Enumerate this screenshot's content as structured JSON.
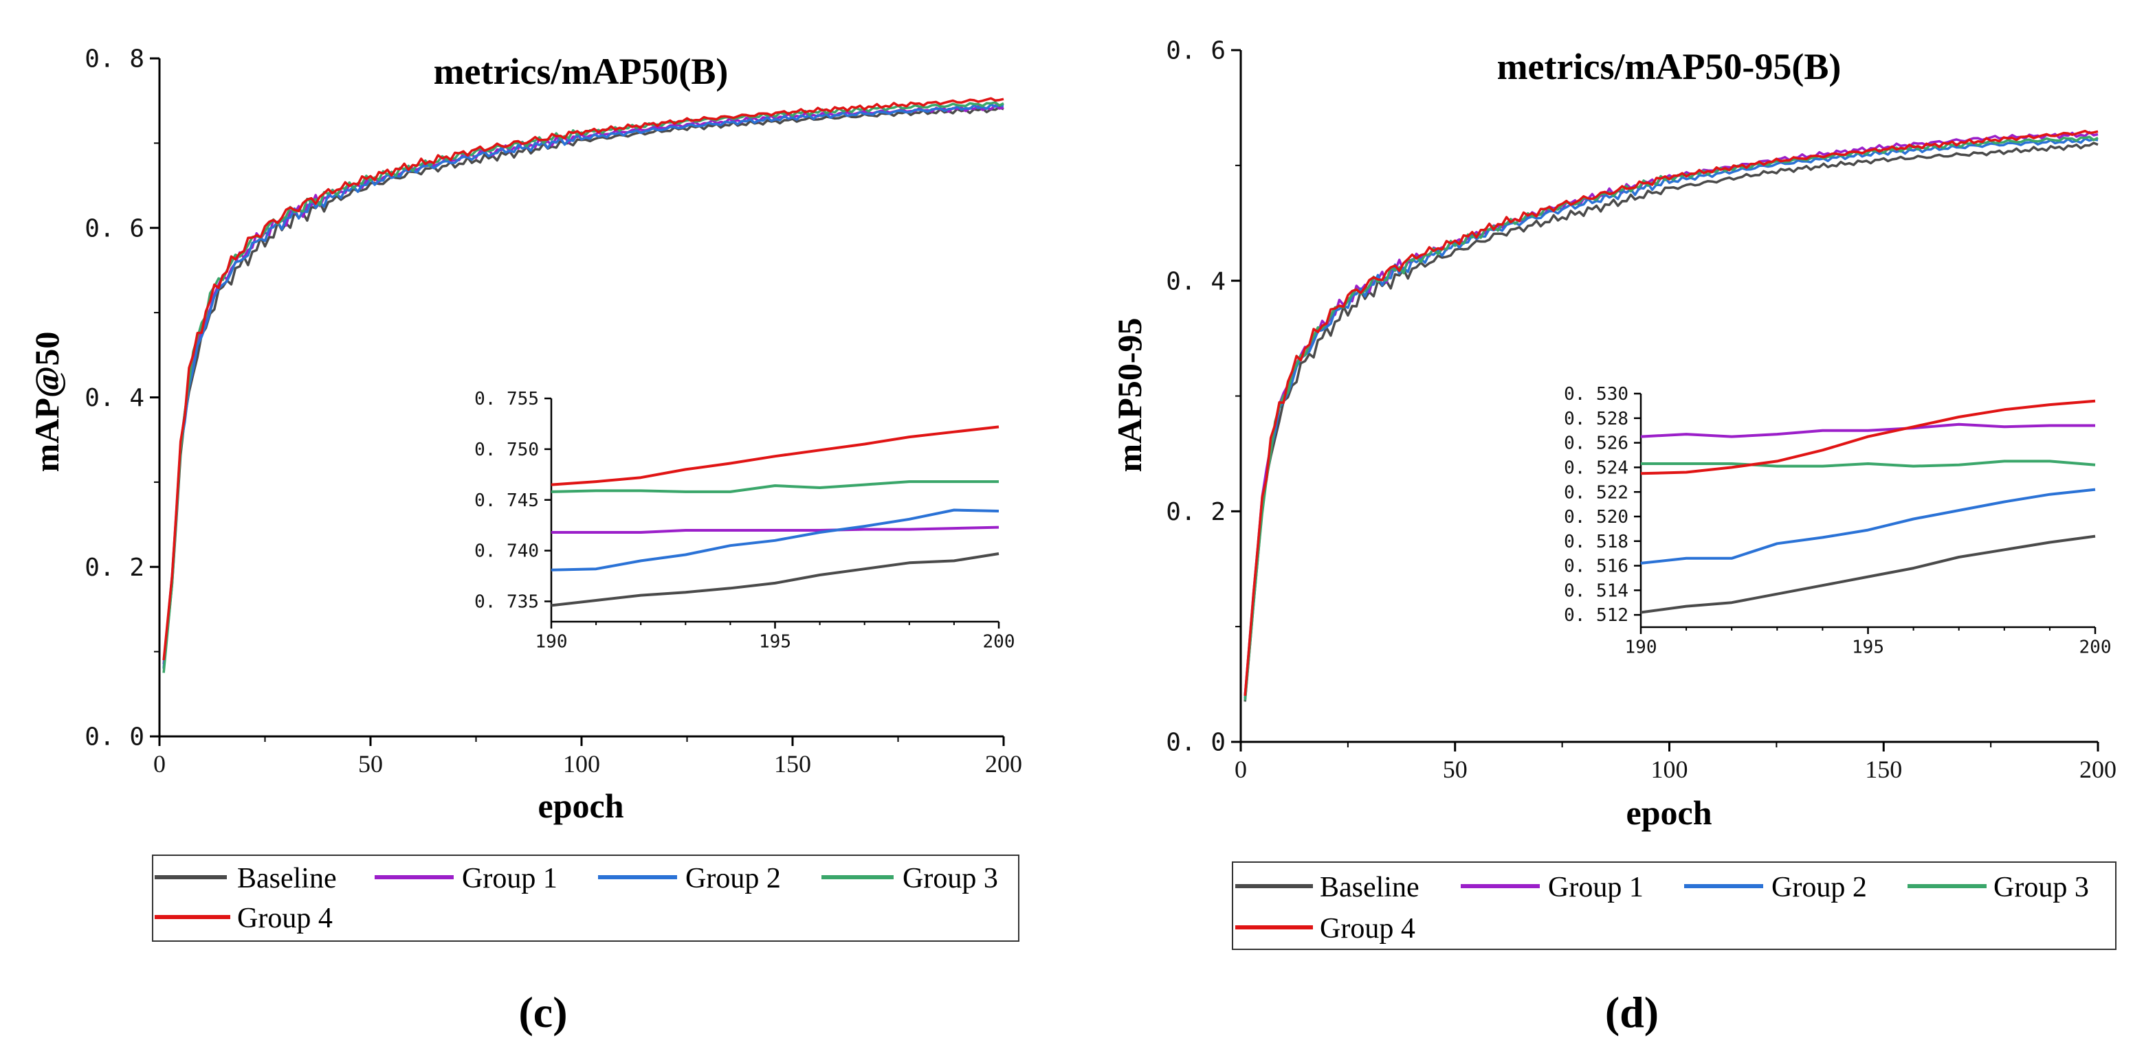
{
  "colors": {
    "Baseline": "#4a4a4a",
    "Group 1": "#9b1fc9",
    "Group 2": "#2a72d6",
    "Group 3": "#3aa66a",
    "Group 4": "#e01414"
  },
  "panels": [
    {
      "caption": "(c)",
      "legend": [
        "Baseline",
        "Group 1",
        "Group 2",
        "Group 3",
        "Group 4"
      ]
    },
    {
      "caption": "(d)",
      "legend": [
        "Baseline",
        "Group 1",
        "Group 2",
        "Group 3",
        "Group 4"
      ]
    }
  ],
  "chart_data": [
    {
      "type": "line",
      "title": "metrics/mAP50(B)",
      "xlabel": "epoch",
      "ylabel": "mAP@50",
      "xlim": [
        0,
        200
      ],
      "ylim": [
        0,
        0.8
      ],
      "xticks": [
        "0",
        "50",
        "100",
        "150",
        "200"
      ],
      "yticks": [
        "0. 0",
        "0. 2",
        "0. 4",
        "0. 6",
        "0. 8"
      ],
      "grid": false,
      "x": [
        1,
        3,
        5,
        7,
        9,
        12,
        15,
        20,
        25,
        30,
        40,
        50,
        60,
        75,
        100,
        125,
        150,
        175,
        200
      ],
      "series": [
        {
          "name": "Baseline",
          "values": [
            0.08,
            0.18,
            0.33,
            0.41,
            0.45,
            0.5,
            0.53,
            0.56,
            0.585,
            0.605,
            0.63,
            0.65,
            0.665,
            0.68,
            0.703,
            0.718,
            0.727,
            0.735,
            0.74
          ]
        },
        {
          "name": "Group 1",
          "values": [
            0.085,
            0.19,
            0.34,
            0.42,
            0.46,
            0.51,
            0.54,
            0.57,
            0.595,
            0.612,
            0.638,
            0.655,
            0.67,
            0.687,
            0.708,
            0.722,
            0.732,
            0.738,
            0.742
          ]
        },
        {
          "name": "Group 2",
          "values": [
            0.08,
            0.185,
            0.335,
            0.415,
            0.455,
            0.505,
            0.535,
            0.567,
            0.592,
            0.61,
            0.635,
            0.653,
            0.668,
            0.685,
            0.706,
            0.72,
            0.73,
            0.737,
            0.744
          ]
        },
        {
          "name": "Group 3",
          "values": [
            0.075,
            0.18,
            0.34,
            0.425,
            0.47,
            0.52,
            0.545,
            0.575,
            0.598,
            0.615,
            0.64,
            0.658,
            0.672,
            0.69,
            0.712,
            0.726,
            0.735,
            0.742,
            0.747
          ]
        },
        {
          "name": "Group 4",
          "values": [
            0.09,
            0.19,
            0.345,
            0.43,
            0.47,
            0.515,
            0.545,
            0.578,
            0.6,
            0.618,
            0.642,
            0.66,
            0.674,
            0.692,
            0.713,
            0.727,
            0.737,
            0.745,
            0.752
          ]
        }
      ],
      "inset": {
        "xlim": [
          190,
          200
        ],
        "ylim": [
          0.733,
          0.755
        ],
        "xticks": [
          "190",
          "195",
          "200"
        ],
        "yticks": [
          "0. 735",
          "0. 740",
          "0. 745",
          "0. 750",
          "0. 755"
        ],
        "x": [
          190,
          191,
          192,
          193,
          194,
          195,
          196,
          197,
          198,
          199,
          200
        ],
        "series": [
          {
            "name": "Baseline",
            "values": [
              0.7346,
              0.7351,
              0.7356,
              0.7359,
              0.7363,
              0.7368,
              0.7376,
              0.7382,
              0.7388,
              0.739,
              0.7397
            ]
          },
          {
            "name": "Group 1",
            "values": [
              0.7418,
              0.7418,
              0.7418,
              0.742,
              0.742,
              0.742,
              0.742,
              0.7421,
              0.7421,
              0.7422,
              0.7423
            ]
          },
          {
            "name": "Group 2",
            "values": [
              0.7381,
              0.7382,
              0.739,
              0.7396,
              0.7405,
              0.741,
              0.7418,
              0.7424,
              0.7431,
              0.744,
              0.7439
            ]
          },
          {
            "name": "Group 3",
            "values": [
              0.7458,
              0.7459,
              0.7459,
              0.7458,
              0.7458,
              0.7464,
              0.7462,
              0.7465,
              0.7468,
              0.7468,
              0.7468
            ]
          },
          {
            "name": "Group 4",
            "values": [
              0.7465,
              0.7468,
              0.7472,
              0.748,
              0.7486,
              0.7493,
              0.7499,
              0.7505,
              0.7512,
              0.7517,
              0.7522
            ]
          }
        ]
      }
    },
    {
      "type": "line",
      "title": "metrics/mAP50-95(B)",
      "xlabel": "epoch",
      "ylabel": "mAP50-95",
      "xlim": [
        0,
        200
      ],
      "ylim": [
        0,
        0.6
      ],
      "xticks": [
        "0",
        "50",
        "100",
        "150",
        "200"
      ],
      "yticks": [
        "0. 0",
        "0. 2",
        "0. 4",
        "0. 6"
      ],
      "grid": false,
      "x": [
        1,
        3,
        5,
        7,
        9,
        12,
        15,
        20,
        25,
        30,
        40,
        50,
        60,
        75,
        100,
        125,
        150,
        175,
        200
      ],
      "series": [
        {
          "name": "Baseline",
          "values": [
            0.035,
            0.12,
            0.2,
            0.25,
            0.28,
            0.31,
            0.33,
            0.355,
            0.375,
            0.39,
            0.41,
            0.425,
            0.44,
            0.455,
            0.48,
            0.495,
            0.505,
            0.511,
            0.518
          ]
        },
        {
          "name": "Group 1",
          "values": [
            0.04,
            0.13,
            0.21,
            0.26,
            0.29,
            0.32,
            0.34,
            0.365,
            0.385,
            0.397,
            0.418,
            0.433,
            0.447,
            0.465,
            0.49,
            0.505,
            0.516,
            0.524,
            0.527
          ]
        },
        {
          "name": "Group 2",
          "values": [
            0.038,
            0.125,
            0.205,
            0.255,
            0.285,
            0.315,
            0.337,
            0.362,
            0.382,
            0.395,
            0.415,
            0.43,
            0.445,
            0.462,
            0.486,
            0.501,
            0.511,
            0.518,
            0.522
          ]
        },
        {
          "name": "Group 3",
          "values": [
            0.036,
            0.12,
            0.2,
            0.255,
            0.29,
            0.318,
            0.34,
            0.366,
            0.384,
            0.396,
            0.417,
            0.432,
            0.447,
            0.465,
            0.489,
            0.503,
            0.513,
            0.52,
            0.524
          ]
        },
        {
          "name": "Group 4",
          "values": [
            0.04,
            0.13,
            0.21,
            0.26,
            0.29,
            0.322,
            0.342,
            0.367,
            0.386,
            0.398,
            0.42,
            0.434,
            0.449,
            0.466,
            0.49,
            0.504,
            0.514,
            0.522,
            0.5295
          ]
        }
      ],
      "inset": {
        "xlim": [
          190,
          200
        ],
        "ylim": [
          0.511,
          0.53
        ],
        "xticks": [
          "190",
          "195",
          "200"
        ],
        "yticks": [
          "0. 512",
          "0. 514",
          "0. 516",
          "0. 518",
          "0. 520",
          "0. 522",
          "0. 524",
          "0. 526",
          "0. 528",
          "0. 530"
        ],
        "x": [
          190,
          191,
          192,
          193,
          194,
          195,
          196,
          197,
          198,
          199,
          200
        ],
        "series": [
          {
            "name": "Baseline",
            "values": [
              0.5122,
              0.5127,
              0.513,
              0.5137,
              0.5144,
              0.5151,
              0.5158,
              0.5167,
              0.5173,
              0.5179,
              0.5184
            ]
          },
          {
            "name": "Group 1",
            "values": [
              0.5265,
              0.5267,
              0.5265,
              0.5267,
              0.527,
              0.527,
              0.5272,
              0.5275,
              0.5273,
              0.5274,
              0.5274
            ]
          },
          {
            "name": "Group 2",
            "values": [
              0.5162,
              0.5166,
              0.5166,
              0.5178,
              0.5183,
              0.5189,
              0.5198,
              0.5205,
              0.5212,
              0.5218,
              0.5222
            ]
          },
          {
            "name": "Group 3",
            "values": [
              0.5243,
              0.5243,
              0.5243,
              0.5241,
              0.5241,
              0.5243,
              0.5241,
              0.5242,
              0.5245,
              0.5245,
              0.5242
            ]
          },
          {
            "name": "Group 4",
            "values": [
              0.5235,
              0.5236,
              0.524,
              0.5245,
              0.5254,
              0.5265,
              0.5273,
              0.5281,
              0.5287,
              0.5291,
              0.5294
            ]
          }
        ]
      }
    }
  ]
}
